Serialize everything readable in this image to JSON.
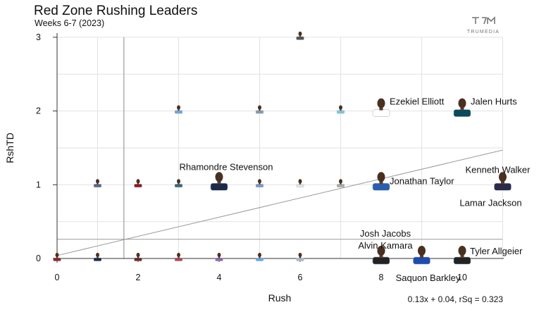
{
  "header": {
    "title": "Red Zone Rushing Leaders",
    "subtitle": "Weeks 6-7 (2023)",
    "brand": "TRUMEDIA"
  },
  "chart_data": {
    "type": "scatter",
    "xlabel": "Rush",
    "ylabel": "RshTD",
    "xlim": [
      0,
      11
    ],
    "ylim": [
      0,
      3
    ],
    "x_ticks": [
      "0",
      "2",
      "4",
      "6",
      "8",
      "10"
    ],
    "y_ticks": [
      "0",
      "1",
      "2",
      "3"
    ],
    "grid": true,
    "reference_lines": {
      "mean_x": 1.65,
      "mean_y": 0.26
    },
    "fit": {
      "slope": 0.13,
      "intercept": 0.04,
      "label": "0.13x + 0.04, rSq = 0.323"
    },
    "labeled_points": [
      {
        "name": "Ezekiel Elliott",
        "x": 8,
        "y": 2,
        "jersey": "#ffffff"
      },
      {
        "name": "Jalen Hurts",
        "x": 10,
        "y": 2,
        "jersey": "#0b4a5a"
      },
      {
        "name": "Rhamondre Stevenson",
        "x": 4,
        "y": 1,
        "jersey": "#1c2a4a"
      },
      {
        "name": "Jonathan Taylor",
        "x": 8,
        "y": 1,
        "jersey": "#2a5fb0"
      },
      {
        "name": "Kenneth Walker",
        "x": 11,
        "y": 1,
        "jersey": "#2a2a4a"
      },
      {
        "name": "Lamar Jackson",
        "x": 11,
        "y": 1,
        "jersey": "#3b2a78"
      },
      {
        "name": "Josh Jacobs",
        "x": 8,
        "y": 0,
        "jersey": "#222222"
      },
      {
        "name": "Alvin Kamara",
        "x": 8,
        "y": 0,
        "jersey": "#222222"
      },
      {
        "name": "Saquon Barkley",
        "x": 9,
        "y": 0,
        "jersey": "#1e4bb0"
      },
      {
        "name": "Tyler Allgeier",
        "x": 10,
        "y": 0,
        "jersey": "#222222"
      }
    ],
    "other_points": [
      {
        "x": 6,
        "y": 3,
        "jersey": "#555555"
      },
      {
        "x": 3,
        "y": 2,
        "jersey": "#6ea6d8"
      },
      {
        "x": 5,
        "y": 2,
        "jersey": "#8899aa"
      },
      {
        "x": 7,
        "y": 2,
        "jersey": "#7ac8de"
      },
      {
        "x": 1,
        "y": 1,
        "jersey": "#5a6a86"
      },
      {
        "x": 2,
        "y": 1,
        "jersey": "#8a1f1f"
      },
      {
        "x": 3,
        "y": 1,
        "jersey": "#3a6a7a"
      },
      {
        "x": 5,
        "y": 1,
        "jersey": "#7a9ac8"
      },
      {
        "x": 6,
        "y": 1,
        "jersey": "#e0e0e0"
      },
      {
        "x": 7,
        "y": 1,
        "jersey": "#aaaaaa"
      },
      {
        "x": 0,
        "y": 0,
        "jersey": "#8a2a2a"
      },
      {
        "x": 1,
        "y": 0,
        "jersey": "#1c2a4a"
      },
      {
        "x": 2,
        "y": 0,
        "jersey": "#6a2a2a"
      },
      {
        "x": 3,
        "y": 0,
        "jersey": "#aa4a5a"
      },
      {
        "x": 4,
        "y": 0,
        "jersey": "#8a6aa8"
      },
      {
        "x": 5,
        "y": 0,
        "jersey": "#6ea6d8"
      },
      {
        "x": 6,
        "y": 0,
        "jersey": "#aab8c8"
      }
    ]
  }
}
